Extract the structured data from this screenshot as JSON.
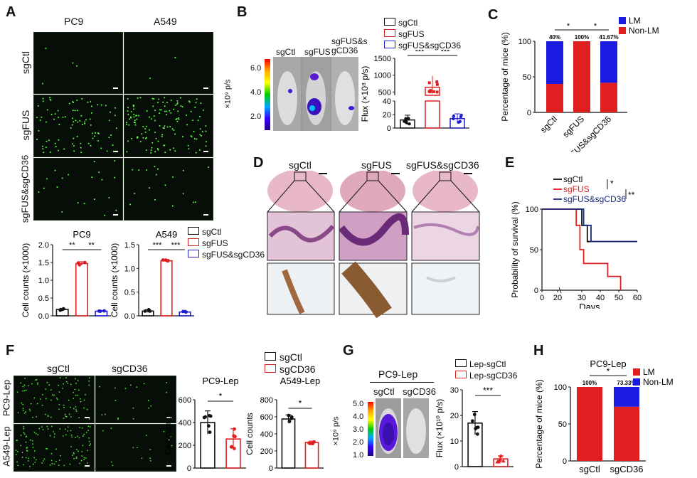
{
  "panels": {
    "A": "A",
    "B": "B",
    "C": "C",
    "D": "D",
    "E": "E",
    "F": "F",
    "G": "G",
    "H": "H"
  },
  "a": {
    "cols": [
      "PC9",
      "A549"
    ],
    "rows": [
      "sgCtl",
      "sgFUS",
      "sgFUS&sgCD36"
    ],
    "legend": [
      "sgCtl",
      "sgFUS",
      "sgFUS&sgCD36"
    ],
    "ylabel": "Cell counts (×1000)"
  },
  "b": {
    "mice": [
      "sgCtl",
      "sgFUS",
      "sgFUS&sgCD36"
    ],
    "scale_label": "×10⁹ p/s",
    "scale_ticks": [
      "6.0",
      "4.0",
      "2.0"
    ],
    "legend": [
      "sgCtl",
      "sgFUS",
      "sgFUS&sgCD36"
    ],
    "ylabel": "Flux (×10⁸ p/s)",
    "sig": [
      "***",
      "***"
    ]
  },
  "d": {
    "cols": [
      "sgCtl",
      "sgFUS",
      "sgFUS&sgCD36"
    ]
  },
  "f": {
    "cols": [
      "sgCtl",
      "sgCD36"
    ],
    "rows": [
      "PC9-Lep",
      "A549-Lep"
    ],
    "legend": [
      "sgCtl",
      "sgCD36"
    ]
  },
  "g": {
    "title": "PC9-Lep",
    "mice": [
      "sgCtl",
      "sgCD36"
    ],
    "scale_label": "×10⁹ p/s",
    "scale_ticks": [
      "5.0",
      "4.0",
      "3.0",
      "2.0",
      "1.0"
    ],
    "legend": [
      "Lep-sgCtl",
      "Lep-sgCD36"
    ]
  },
  "chart_data": [
    {
      "id": "A-PC9",
      "type": "bar",
      "title": "PC9",
      "categories": [
        "sgCtl",
        "sgFUS",
        "sgFUS&sgCD36"
      ],
      "values": [
        0.18,
        1.47,
        0.13
      ],
      "ylabel": "Cell counts (×1000)",
      "ylim": [
        0,
        2.0
      ],
      "yticks": [
        "0.0",
        "0.5",
        "1.0",
        "1.5",
        "2.0"
      ],
      "sig": [
        "**",
        "**"
      ]
    },
    {
      "id": "A-A549",
      "type": "bar",
      "title": "A549",
      "categories": [
        "sgCtl",
        "sgFUS",
        "sgFUS&sgCD36"
      ],
      "values": [
        0.1,
        1.16,
        0.08
      ],
      "ylabel": "Cell counts (×1000)",
      "ylim": [
        0,
        1.5
      ],
      "yticks": [
        "0.0",
        "0.5",
        "1.0",
        "1.5"
      ],
      "sig": [
        "***",
        "***"
      ]
    },
    {
      "id": "B",
      "type": "bar",
      "categories": [
        "sgCtl",
        "sgFUS",
        "sgFUS&sgCD36"
      ],
      "values": [
        12,
        640,
        14
      ],
      "ylabel": "Flux (×10⁸ p/s)",
      "yticks_low": [
        "0",
        "20",
        "40"
      ],
      "yticks_high": [
        "500",
        "1000",
        "1500"
      ]
    },
    {
      "id": "C",
      "type": "bar",
      "stacked": true,
      "categories": [
        "sgCtl",
        "sgFUS",
        "sgFUS&sgCD36"
      ],
      "series": [
        {
          "name": "LM",
          "values": [
            60,
            0,
            58.33
          ],
          "color": "#1a1ae0"
        },
        {
          "name": "Non-LM",
          "values": [
            40,
            100,
            41.67
          ],
          "color": "#e02020"
        }
      ],
      "pct_labels": [
        "40%",
        "100%",
        "41.67%"
      ],
      "ylabel": "Percentage of mice (%)",
      "ylim": [
        0,
        100
      ],
      "yticks": [
        "0",
        "50",
        "100"
      ],
      "sig": [
        "*",
        "*"
      ]
    },
    {
      "id": "E",
      "type": "line",
      "series": [
        {
          "name": "sgCtl",
          "color": "#111111"
        },
        {
          "name": "sgFUS",
          "color": "#e02020"
        },
        {
          "name": "sgFUS&sgCD36",
          "color": "#1a2a80"
        }
      ],
      "xlabel": "Days",
      "ylabel": "Probability of survival (%)",
      "xticks": [
        "0",
        "20",
        "30",
        "40",
        "50",
        "60"
      ],
      "yticks": [
        "0",
        "50",
        "100"
      ],
      "sig": [
        "*",
        "**"
      ]
    },
    {
      "id": "F-PC9",
      "type": "bar",
      "title": "PC9-Lep",
      "categories": [
        "sgCtl",
        "sgCD36"
      ],
      "values": [
        400,
        255
      ],
      "ylabel": "Cell counts",
      "ylim": [
        0,
        600
      ],
      "yticks": [
        "0",
        "200",
        "400",
        "600"
      ],
      "sig": [
        "*"
      ]
    },
    {
      "id": "F-A549",
      "type": "bar",
      "title": "A549-Lep",
      "categories": [
        "sgCtl",
        "sgCD36"
      ],
      "values": [
        575,
        300
      ],
      "ylabel": "Cell counts",
      "ylim": [
        0,
        800
      ],
      "yticks": [
        "0",
        "200",
        "400",
        "600",
        "800"
      ],
      "sig": [
        "*"
      ]
    },
    {
      "id": "G",
      "type": "bar",
      "categories": [
        "Lep-sgCtl",
        "Lep-sgCD36"
      ],
      "values": [
        17,
        3
      ],
      "ylabel": "Flux (×10¹⁰ p/s)",
      "ylim": [
        0,
        30
      ],
      "yticks": [
        "0",
        "10",
        "20",
        "30"
      ],
      "sig": [
        "***"
      ]
    },
    {
      "id": "H",
      "type": "bar",
      "stacked": true,
      "title": "PC9-Lep",
      "categories": [
        "sgCtl",
        "sgCD36"
      ],
      "series": [
        {
          "name": "LM",
          "values": [
            100,
            73.33
          ],
          "color": "#e02020"
        },
        {
          "name": "Non-LM",
          "values": [
            0,
            26.67
          ],
          "color": "#1a1ae0"
        }
      ],
      "pct_labels": [
        "100%",
        "73.33%"
      ],
      "ylabel": "Percentage of mice (%)",
      "ylim": [
        0,
        100
      ],
      "yticks": [
        "0",
        "50",
        "100"
      ],
      "sig": [
        "*"
      ]
    }
  ]
}
